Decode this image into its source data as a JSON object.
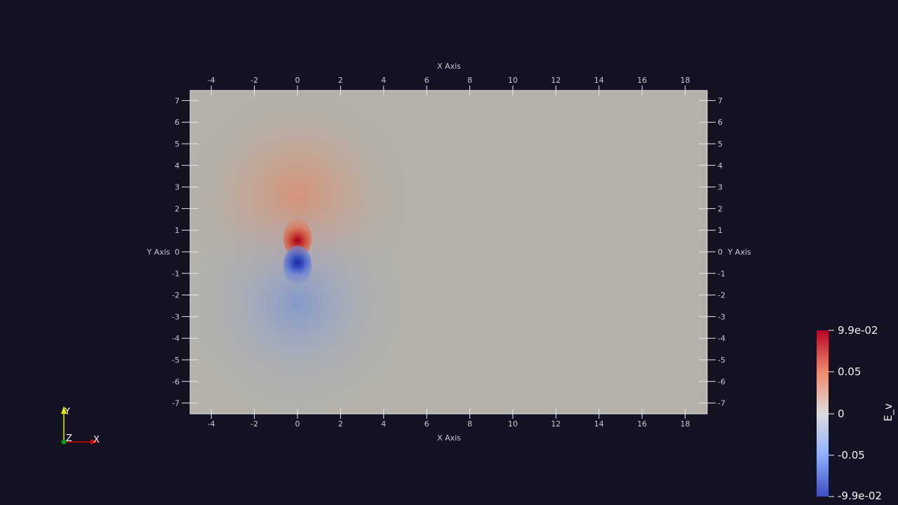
{
  "plot": {
    "x_axis_title": "X Axis",
    "y_axis_title": "Y Axis",
    "x_ticks": [
      -4,
      -2,
      0,
      2,
      4,
      6,
      8,
      10,
      12,
      14,
      16,
      18
    ],
    "y_ticks": [
      7,
      6,
      5,
      4,
      3,
      2,
      1,
      0,
      -1,
      -2,
      -3,
      -4,
      -5,
      -6,
      -7
    ],
    "x_range": [
      -5,
      19
    ],
    "y_range": [
      -7.5,
      7.5
    ],
    "background_color": "#121222",
    "field_neutral_color": "#b3b1aa"
  },
  "colorbar": {
    "title": "E_v",
    "labels": [
      "9.9e-02",
      "0.05",
      "0",
      "-0.05",
      "-9.9e-02"
    ],
    "max": 0.099,
    "min": -0.099,
    "high_color": "#b40426",
    "mid_color": "#dddddd",
    "low_color": "#3b4cc0"
  },
  "orientation_axes": {
    "y_label": "Y",
    "x_label": "X",
    "z_label": "Z",
    "y_color": "#e8e800",
    "x_color": "#e00000",
    "z_color": "#00a000"
  }
}
